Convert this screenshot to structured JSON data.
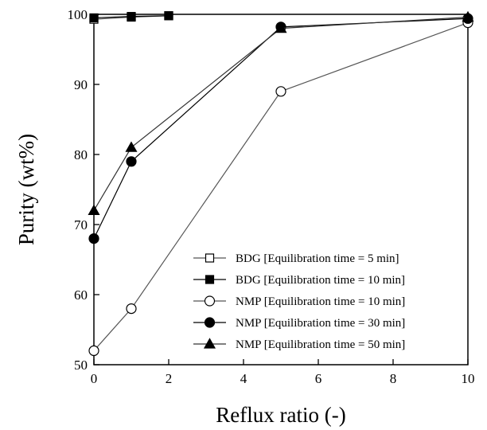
{
  "chart_data": {
    "type": "line",
    "xlabel": "Reflux ratio (-)",
    "ylabel": "Purity (wt%)",
    "xlim": [
      0,
      10
    ],
    "ylim": [
      50,
      100
    ],
    "x_ticks": [
      0,
      2,
      4,
      6,
      8,
      10
    ],
    "y_ticks": [
      50,
      60,
      70,
      80,
      90,
      100
    ],
    "grid": false,
    "legend_position": "bottom-right",
    "series": [
      {
        "name": "BDG [Equilibration time = 5 min]",
        "marker": "open-square",
        "line_color": "#555555",
        "x": [
          0,
          1,
          2
        ],
        "y": [
          99.3,
          99.6,
          99.8
        ]
      },
      {
        "name": "BDG [Equilibration time = 10 min]",
        "marker": "filled-square",
        "line_color": "#000000",
        "x": [
          0,
          1,
          2
        ],
        "y": [
          99.5,
          99.7,
          99.8
        ]
      },
      {
        "name": "NMP [Equilibration time = 10 min]",
        "marker": "open-circle",
        "line_color": "#555555",
        "x": [
          0,
          1,
          5,
          10
        ],
        "y": [
          52,
          58,
          89,
          98.8
        ]
      },
      {
        "name": "NMP [Equilibration time = 30 min]",
        "marker": "filled-circle",
        "line_color": "#000000",
        "x": [
          0,
          1,
          5,
          10
        ],
        "y": [
          68,
          79,
          98.2,
          99.4
        ]
      },
      {
        "name": "NMP [Equilibration time = 50 min]",
        "marker": "filled-triangle",
        "line_color": "#333333",
        "x": [
          0,
          1,
          5,
          10
        ],
        "y": [
          72,
          81,
          98,
          99.6
        ]
      }
    ]
  }
}
